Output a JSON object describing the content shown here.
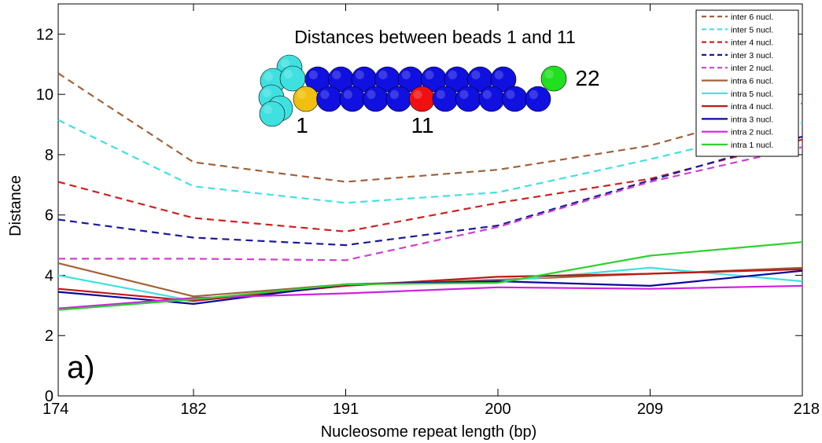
{
  "chart_data": {
    "type": "line",
    "xlabel": "Nucleosome repeat length (bp)",
    "ylabel": "Distance",
    "x": [
      174,
      182,
      191,
      200,
      209,
      218
    ],
    "x_tick_labels": [
      "174",
      "182",
      "191",
      "200",
      "209",
      "218"
    ],
    "ylim": [
      0,
      13
    ],
    "y_ticks": [
      0,
      2,
      4,
      6,
      8,
      10,
      12
    ],
    "y_tick_labels": [
      "0",
      "2",
      "4",
      "6",
      "8",
      "10",
      "12"
    ],
    "panel_label": "a)",
    "grid": false,
    "legend_position": "top-right",
    "series": [
      {
        "name": "inter 6 nucl.",
        "color": "#A0623A",
        "dash": true,
        "values": [
          10.7,
          7.75,
          7.1,
          7.5,
          8.3,
          9.7
        ]
      },
      {
        "name": "inter 5 nucl.",
        "color": "#40E0E0",
        "dash": true,
        "values": [
          9.15,
          6.95,
          6.4,
          6.75,
          7.85,
          9.05
        ]
      },
      {
        "name": "inter 4 nucl.",
        "color": "#D02020",
        "dash": true,
        "values": [
          7.1,
          5.9,
          5.45,
          6.4,
          7.2,
          8.5
        ]
      },
      {
        "name": "inter 3 nucl.",
        "color": "#1A1A9A",
        "dash": true,
        "values": [
          5.85,
          5.25,
          5.0,
          5.65,
          7.15,
          8.6
        ]
      },
      {
        "name": "inter 2 nucl.",
        "color": "#D040D0",
        "dash": true,
        "values": [
          4.55,
          4.55,
          4.5,
          5.6,
          7.1,
          8.25
        ]
      },
      {
        "name": "intra 6 nucl.",
        "color": "#A0623A",
        "dash": false,
        "values": [
          4.4,
          3.3,
          3.7,
          3.85,
          4.05,
          4.25
        ]
      },
      {
        "name": "intra 5 nucl.",
        "color": "#40E0E0",
        "dash": false,
        "values": [
          4.0,
          3.15,
          3.7,
          3.8,
          4.25,
          3.8
        ]
      },
      {
        "name": "intra 4 nucl.",
        "color": "#C01818",
        "dash": false,
        "values": [
          3.55,
          3.15,
          3.65,
          3.95,
          4.05,
          4.2
        ]
      },
      {
        "name": "intra 3 nucl.",
        "color": "#0A0A9A",
        "dash": false,
        "values": [
          3.45,
          3.05,
          3.7,
          3.8,
          3.65,
          4.15
        ]
      },
      {
        "name": "intra 2 nucl.",
        "color": "#D020E0",
        "dash": false,
        "values": [
          2.9,
          3.25,
          3.4,
          3.6,
          3.55,
          3.65
        ]
      },
      {
        "name": "intra 1 nucl.",
        "color": "#30D030",
        "dash": false,
        "values": [
          2.85,
          3.2,
          3.7,
          3.75,
          4.65,
          5.1
        ]
      }
    ],
    "inset": {
      "title": "Distances between beads 1 and 11",
      "labels": [
        "1",
        "11",
        "22"
      ],
      "colors": {
        "bead": "#1010E0",
        "nucleosome": "#3FE0E0",
        "bead_1": "#F0C010",
        "bead_11": "#F01010",
        "bead_22": "#20E020"
      }
    }
  }
}
